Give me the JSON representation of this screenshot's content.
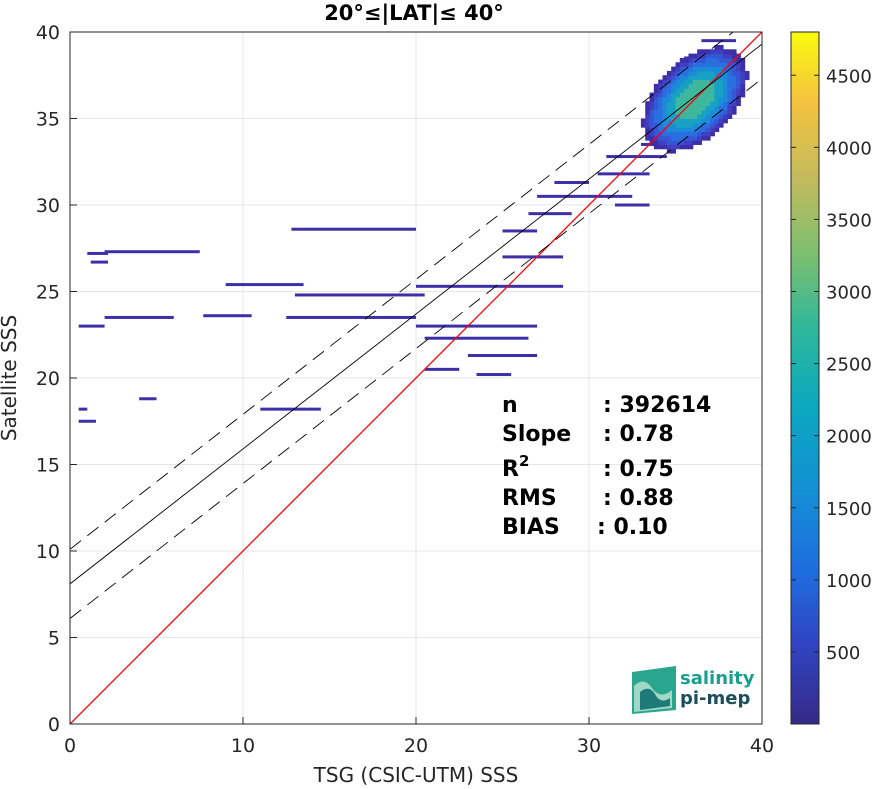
{
  "chart_data": {
    "type": "heatmap",
    "title": "20°≤|LAT|≤ 40°",
    "xlabel": "TSG (CSIC-UTM) SSS",
    "ylabel": "Satellite SSS",
    "xlim": [
      0,
      40
    ],
    "ylim": [
      0,
      40
    ],
    "xticks": [
      "0",
      "10",
      "20",
      "30",
      "40"
    ],
    "yticks": [
      "0",
      "5",
      "10",
      "15",
      "20",
      "25",
      "30",
      "35",
      "40"
    ],
    "grid": true,
    "colorbar": {
      "ticks": [
        "500",
        "1000",
        "1500",
        "2000",
        "2500",
        "3000",
        "3500",
        "4000",
        "4500"
      ],
      "tick_values": [
        500,
        1000,
        1500,
        2000,
        2500,
        3000,
        3500,
        4000,
        4500
      ],
      "range": [
        0,
        4800
      ],
      "colormap": "parula"
    },
    "reference_lines": [
      {
        "kind": "identity",
        "color": "#ff0000",
        "intercept": 0,
        "slope": 1
      },
      {
        "kind": "fit",
        "color": "#000000",
        "style": "solid",
        "intercept": 8.1,
        "slope": 0.78
      },
      {
        "kind": "fit-upper",
        "color": "#000000",
        "style": "dashed",
        "intercept": 10.1,
        "slope": 0.78
      },
      {
        "kind": "fit-lower",
        "color": "#000000",
        "style": "dashed",
        "intercept": 6.1,
        "slope": 0.78
      }
    ],
    "density_core": {
      "x_center": 36,
      "y_center": 36,
      "max_count": 4800
    },
    "density_segments": [
      {
        "x0": 0.5,
        "x1": 2.0,
        "y": 23.0
      },
      {
        "x0": 1.0,
        "x1": 2.2,
        "y": 27.2
      },
      {
        "x0": 2.0,
        "x1": 7.5,
        "y": 27.3
      },
      {
        "x0": 1.2,
        "x1": 2.2,
        "y": 26.7
      },
      {
        "x0": 2.0,
        "x1": 6.0,
        "y": 23.5
      },
      {
        "x0": 7.7,
        "x1": 10.5,
        "y": 23.6
      },
      {
        "x0": 9.0,
        "x1": 13.5,
        "y": 25.4
      },
      {
        "x0": 12.8,
        "x1": 20.0,
        "y": 28.6
      },
      {
        "x0": 13.0,
        "x1": 20.5,
        "y": 24.8
      },
      {
        "x0": 12.5,
        "x1": 20.0,
        "y": 23.5
      },
      {
        "x0": 11.0,
        "x1": 14.5,
        "y": 18.2
      },
      {
        "x0": 20.0,
        "x1": 28.5,
        "y": 25.3
      },
      {
        "x0": 20.0,
        "x1": 27.0,
        "y": 23.0
      },
      {
        "x0": 20.5,
        "x1": 26.5,
        "y": 22.3
      },
      {
        "x0": 20.5,
        "x1": 22.5,
        "y": 20.5
      },
      {
        "x0": 23.5,
        "x1": 25.5,
        "y": 20.2
      },
      {
        "x0": 23.0,
        "x1": 27.0,
        "y": 21.3
      },
      {
        "x0": 25.0,
        "x1": 27.0,
        "y": 28.5
      },
      {
        "x0": 25.0,
        "x1": 28.5,
        "y": 27.0
      },
      {
        "x0": 26.5,
        "x1": 29.0,
        "y": 29.5
      },
      {
        "x0": 27.0,
        "x1": 32.5,
        "y": 30.5
      },
      {
        "x0": 28.0,
        "x1": 30.0,
        "y": 31.3
      },
      {
        "x0": 30.5,
        "x1": 33.5,
        "y": 31.8
      },
      {
        "x0": 31.0,
        "x1": 34.5,
        "y": 32.8
      },
      {
        "x0": 31.5,
        "x1": 33.5,
        "y": 30.0
      },
      {
        "x0": 0.5,
        "x1": 1.5,
        "y": 17.5
      },
      {
        "x0": 0.5,
        "x1": 1.0,
        "y": 18.2
      },
      {
        "x0": 4.0,
        "x1": 5.0,
        "y": 18.8
      },
      {
        "x0": 33.0,
        "x1": 36.0,
        "y": 33.5
      },
      {
        "x0": 33.5,
        "x1": 37.5,
        "y": 34.5
      },
      {
        "x0": 34.0,
        "x1": 38.0,
        "y": 35.5
      },
      {
        "x0": 34.5,
        "x1": 38.5,
        "y": 36.5
      },
      {
        "x0": 35.0,
        "x1": 38.5,
        "y": 37.5
      },
      {
        "x0": 35.5,
        "x1": 38.0,
        "y": 38.5
      },
      {
        "x0": 36.5,
        "x1": 38.5,
        "y": 39.5
      }
    ]
  },
  "stats": {
    "n_label": "n",
    "n_value": ": 392614",
    "slope_label": "Slope",
    "slope_value": ": 0.78",
    "r2_label": "R",
    "r2_sup": "2",
    "r2_value": ": 0.75",
    "rms_label": "RMS",
    "rms_value": ": 0.88",
    "bias_label": "BIAS",
    "bias_value": ": 0.10"
  },
  "logo": {
    "line1": "salinity",
    "line2": "pi-mep"
  }
}
